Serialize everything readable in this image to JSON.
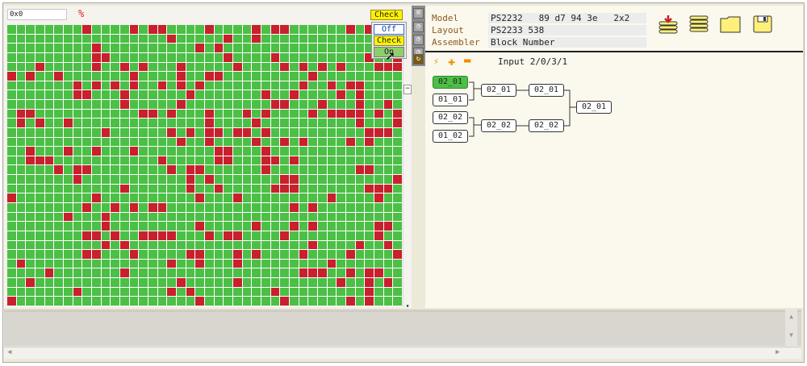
{
  "grid_view": {
    "coord_value": "0x0",
    "percent_icon": "%",
    "cols": 42,
    "rows": 30,
    "cell_colors": {
      "pass": "#4cbf46",
      "fail": "#c8202c"
    }
  },
  "check_dropdown": {
    "current": "Check",
    "options": [
      "Off",
      "Check",
      "On"
    ]
  },
  "side_toolbar": {
    "icons": [
      "list-icon",
      "clock-icon",
      "clock-icon",
      "clock-icon",
      "sync-icon"
    ]
  },
  "info": {
    "model_label": "Model",
    "model_value": "PS2232   89 d7 94 3e   2x2",
    "layout_label": "Layout",
    "layout_value": "PS2233 538",
    "assembler_label": "Assembler",
    "assembler_value": "Block Number"
  },
  "actions": {
    "icons": [
      "download-stack-icon",
      "stack-icon",
      "folder-icon",
      "save-icon"
    ]
  },
  "tree_toolbar": {
    "input_label": "Input 2/0/3/1"
  },
  "tree": {
    "nodes": [
      {
        "label": "02_01",
        "selected": true
      },
      {
        "label": "01_01"
      },
      {
        "label": "02_02"
      },
      {
        "label": "01_02"
      },
      {
        "label": "02_01"
      },
      {
        "label": "02_01"
      },
      {
        "label": "02_02"
      },
      {
        "label": "02_02"
      },
      {
        "label": "02_01"
      }
    ]
  }
}
